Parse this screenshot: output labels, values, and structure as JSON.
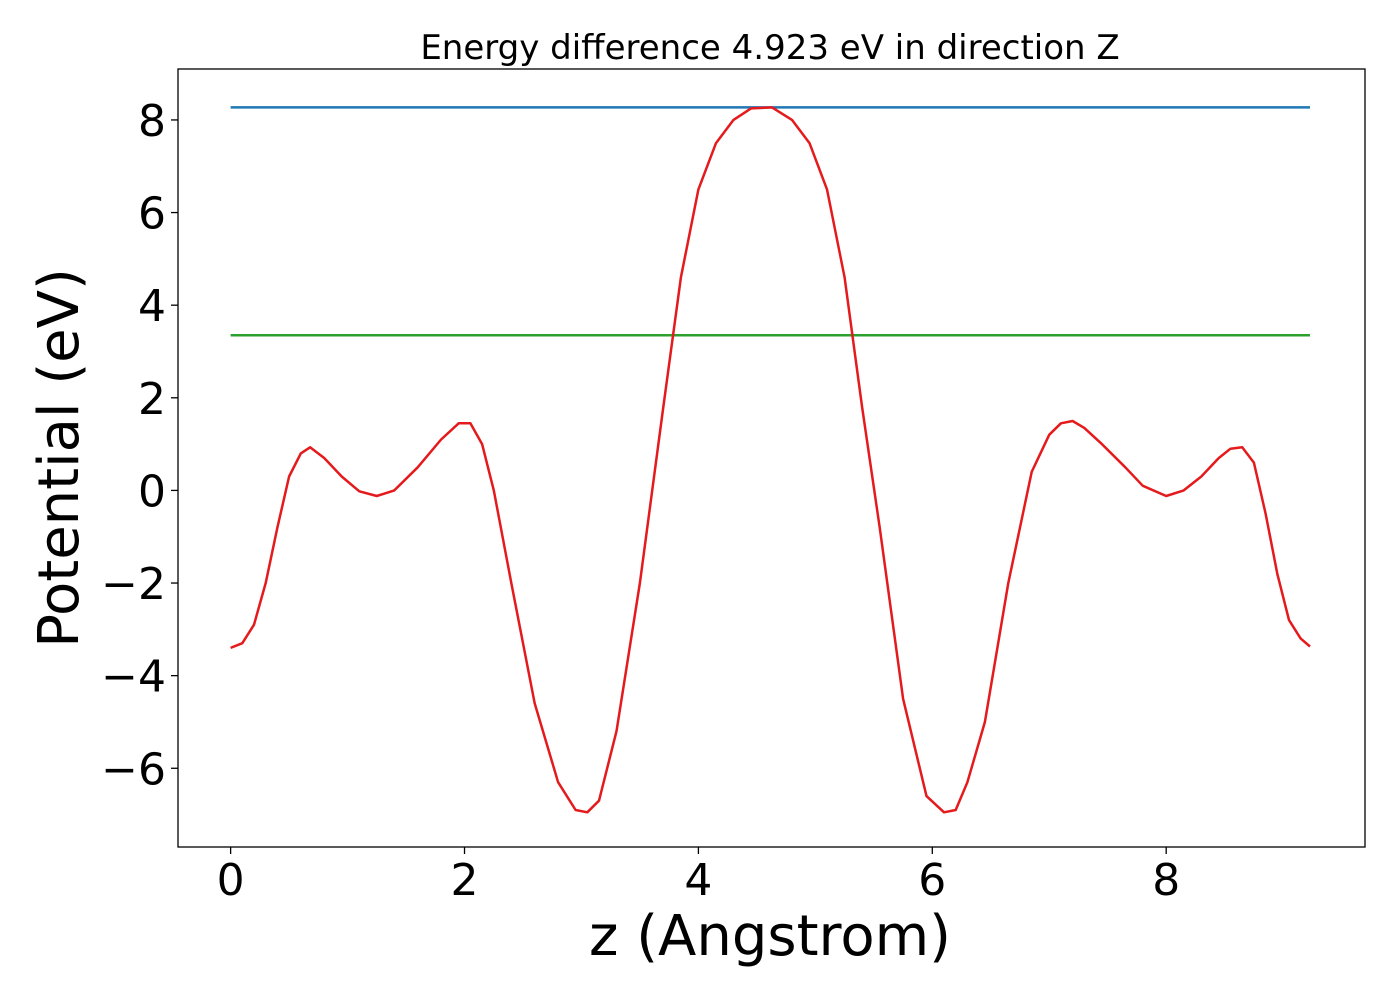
{
  "chart_data": {
    "type": "line",
    "title": "Energy difference 4.923 eV in direction Z",
    "xlabel": "z (Angstrom)",
    "ylabel": "Potential (eV)",
    "xlim": [
      -0.45,
      9.7
    ],
    "ylim": [
      -7.7,
      9.1
    ],
    "xticks": [
      0,
      2,
      4,
      6,
      8
    ],
    "xtick_labels": [
      "0",
      "2",
      "4",
      "6",
      "8"
    ],
    "yticks": [
      -6,
      -4,
      -2,
      0,
      2,
      4,
      6,
      8
    ],
    "ytick_labels": [
      "−6",
      "−4",
      "−2",
      "0",
      "2",
      "4",
      "6",
      "8"
    ],
    "grid": false,
    "series": [
      {
        "color": "#1f77b4",
        "x": [
          0,
          9.23
        ],
        "y": [
          8.27,
          8.27
        ]
      },
      {
        "color": "#2ca02c",
        "x": [
          0,
          9.23
        ],
        "y": [
          3.35,
          3.35
        ]
      },
      {
        "color": "#e41a1c",
        "x": [
          0,
          0.1,
          0.2,
          0.3,
          0.4,
          0.5,
          0.6,
          0.68,
          0.8,
          0.95,
          1.1,
          1.25,
          1.4,
          1.6,
          1.8,
          1.95,
          2.05,
          2.15,
          2.25,
          2.4,
          2.6,
          2.8,
          2.95,
          3.05,
          3.15,
          3.3,
          3.5,
          3.7,
          3.85,
          4.0,
          4.15,
          4.3,
          4.45,
          4.63,
          4.8,
          4.95,
          5.1,
          5.25,
          5.4,
          5.55,
          5.75,
          5.95,
          6.1,
          6.2,
          6.3,
          6.45,
          6.65,
          6.85,
          7.0,
          7.1,
          7.2,
          7.3,
          7.45,
          7.65,
          7.8,
          8.0,
          8.15,
          8.3,
          8.45,
          8.55,
          8.65,
          8.75,
          8.85,
          8.95,
          9.05,
          9.15,
          9.23
        ],
        "y": [
          -3.4,
          -3.3,
          -2.9,
          -2.0,
          -0.8,
          0.3,
          0.8,
          0.93,
          0.7,
          0.3,
          -0.02,
          -0.12,
          0.0,
          0.5,
          1.1,
          1.45,
          1.45,
          1.0,
          0.0,
          -2.0,
          -4.6,
          -6.3,
          -6.9,
          -6.95,
          -6.7,
          -5.2,
          -2.0,
          1.8,
          4.6,
          6.5,
          7.5,
          8.0,
          8.25,
          8.27,
          8.0,
          7.5,
          6.5,
          4.6,
          1.8,
          -0.8,
          -4.5,
          -6.6,
          -6.95,
          -6.9,
          -6.3,
          -5.0,
          -2.0,
          0.4,
          1.2,
          1.45,
          1.5,
          1.35,
          1.0,
          0.5,
          0.1,
          -0.12,
          0.0,
          0.3,
          0.7,
          0.9,
          0.93,
          0.6,
          -0.5,
          -1.8,
          -2.8,
          -3.2,
          -3.37
        ]
      }
    ]
  }
}
